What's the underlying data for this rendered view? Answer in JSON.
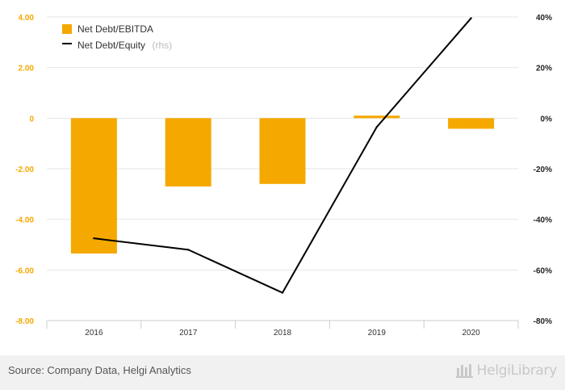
{
  "chart_data": {
    "type": "bar+line",
    "categories": [
      "2016",
      "2017",
      "2018",
      "2019",
      "2020"
    ],
    "series": [
      {
        "name": "Net Debt/EBITDA",
        "type": "bar",
        "axis": "left",
        "values": [
          -5.35,
          -2.7,
          -2.6,
          0.1,
          -0.42
        ],
        "color": "#f5a800"
      },
      {
        "name": "Net Debt/Equity",
        "name_note": "(rhs)",
        "type": "line",
        "axis": "right",
        "values": [
          -47.5,
          -52,
          -69,
          -3.5,
          39.5
        ],
        "color": "#000000"
      }
    ],
    "y_left": {
      "min": -8,
      "max": 4,
      "ticks": [
        "4.00",
        "2.00",
        "0",
        "-2.00",
        "-4.00",
        "-6.00",
        "-8.00"
      ]
    },
    "y_right": {
      "min": -80,
      "max": 40,
      "ticks": [
        "40%",
        "20%",
        "0%",
        "-20%",
        "-40%",
        "-60%",
        "-80%"
      ]
    },
    "grid": true,
    "legend_position": "top-left"
  },
  "footer": {
    "source": "Source: Company Data, Helgi Analytics",
    "logo_text": "HelgiLibrary"
  }
}
